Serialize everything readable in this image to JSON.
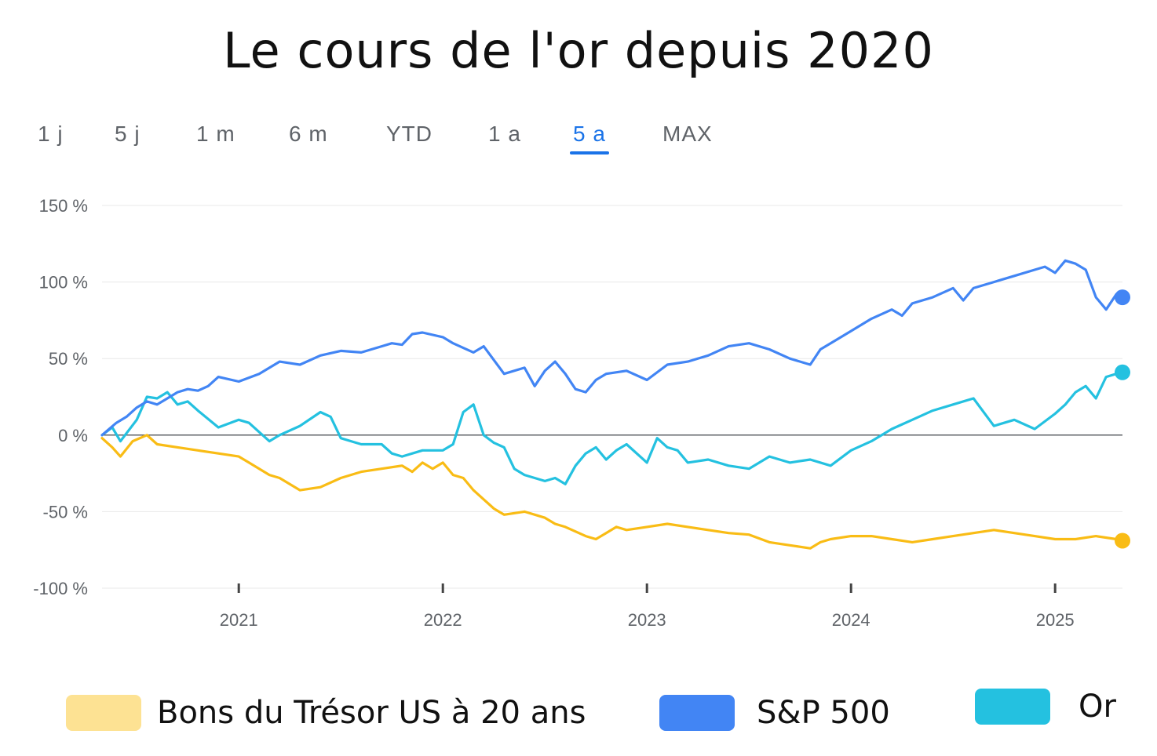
{
  "title": "Le cours de l'or depuis 2020",
  "tabs": [
    {
      "label": "1 j",
      "active": false
    },
    {
      "label": "5 j",
      "active": false
    },
    {
      "label": "1 m",
      "active": false
    },
    {
      "label": "6 m",
      "active": false
    },
    {
      "label": "YTD",
      "active": false
    },
    {
      "label": "1 a",
      "active": false
    },
    {
      "label": "5 a",
      "active": true
    },
    {
      "label": "MAX",
      "active": false
    }
  ],
  "colors": {
    "accent": "#1a73e8",
    "text": "#5f6368",
    "grid": "#e8e8e8",
    "zero_line": "#5f6368"
  },
  "legend": [
    {
      "label": "Bons du Trésor US à 20 ans",
      "color": "#fde293"
    },
    {
      "label": "S&P 500",
      "color": "#4285f4"
    },
    {
      "label": "Or",
      "color": "#24c1e0"
    }
  ],
  "chart_data": {
    "type": "line",
    "ylim": [
      -100,
      150
    ],
    "xlim": [
      2020.33,
      2025.33
    ],
    "y_ticks": [
      150,
      100,
      50,
      0,
      -50,
      -100
    ],
    "y_tick_labels": [
      "150 %",
      "100 %",
      "50 %",
      "0 %",
      "-50 %",
      "-100 %"
    ],
    "x_ticks": [
      2021,
      2022,
      2023,
      2024,
      2025
    ],
    "x_tick_labels": [
      "2021",
      "2022",
      "2023",
      "2024",
      "2025"
    ],
    "series": [
      {
        "name": "S&P 500",
        "color": "#4285f4",
        "x": [
          2020.33,
          2020.4,
          2020.45,
          2020.5,
          2020.55,
          2020.6,
          2020.65,
          2020.7,
          2020.75,
          2020.8,
          2020.85,
          2020.9,
          2021.0,
          2021.1,
          2021.2,
          2021.3,
          2021.4,
          2021.5,
          2021.6,
          2021.7,
          2021.75,
          2021.8,
          2021.85,
          2021.9,
          2022.0,
          2022.05,
          2022.15,
          2022.2,
          2022.3,
          2022.4,
          2022.45,
          2022.5,
          2022.55,
          2022.6,
          2022.65,
          2022.7,
          2022.75,
          2022.8,
          2022.9,
          2023.0,
          2023.1,
          2023.2,
          2023.3,
          2023.4,
          2023.5,
          2023.6,
          2023.7,
          2023.8,
          2023.85,
          2023.9,
          2024.0,
          2024.1,
          2024.2,
          2024.25,
          2024.3,
          2024.4,
          2024.5,
          2024.55,
          2024.6,
          2024.7,
          2024.8,
          2024.9,
          2024.95,
          2025.0,
          2025.05,
          2025.1,
          2025.15,
          2025.2,
          2025.25,
          2025.3,
          2025.33
        ],
        "y": [
          0,
          8,
          12,
          18,
          22,
          20,
          24,
          28,
          30,
          29,
          32,
          38,
          35,
          40,
          48,
          46,
          52,
          55,
          54,
          58,
          60,
          59,
          66,
          67,
          64,
          60,
          54,
          58,
          40,
          44,
          32,
          42,
          48,
          40,
          30,
          28,
          36,
          40,
          42,
          36,
          46,
          48,
          52,
          58,
          60,
          56,
          50,
          46,
          56,
          60,
          68,
          76,
          82,
          78,
          86,
          90,
          96,
          88,
          96,
          100,
          104,
          108,
          110,
          106,
          114,
          112,
          108,
          90,
          82,
          92,
          90
        ]
      },
      {
        "name": "Or",
        "color": "#24c1e0",
        "x": [
          2020.33,
          2020.38,
          2020.42,
          2020.5,
          2020.55,
          2020.6,
          2020.65,
          2020.7,
          2020.75,
          2020.8,
          2020.9,
          2021.0,
          2021.05,
          2021.1,
          2021.15,
          2021.2,
          2021.3,
          2021.4,
          2021.45,
          2021.5,
          2021.55,
          2021.6,
          2021.7,
          2021.75,
          2021.8,
          2021.9,
          2022.0,
          2022.05,
          2022.1,
          2022.15,
          2022.2,
          2022.25,
          2022.3,
          2022.35,
          2022.4,
          2022.5,
          2022.55,
          2022.6,
          2022.65,
          2022.7,
          2022.75,
          2022.8,
          2022.85,
          2022.9,
          2023.0,
          2023.05,
          2023.1,
          2023.15,
          2023.2,
          2023.3,
          2023.4,
          2023.5,
          2023.6,
          2023.7,
          2023.8,
          2023.9,
          2024.0,
          2024.1,
          2024.2,
          2024.3,
          2024.4,
          2024.5,
          2024.6,
          2024.7,
          2024.8,
          2024.9,
          2025.0,
          2025.05,
          2025.1,
          2025.15,
          2025.2,
          2025.25,
          2025.3,
          2025.33
        ],
        "y": [
          0,
          5,
          -4,
          10,
          25,
          24,
          28,
          20,
          22,
          16,
          5,
          10,
          8,
          2,
          -4,
          0,
          6,
          15,
          12,
          -2,
          -4,
          -6,
          -6,
          -12,
          -14,
          -10,
          -10,
          -6,
          15,
          20,
          0,
          -5,
          -8,
          -22,
          -26,
          -30,
          -28,
          -32,
          -20,
          -12,
          -8,
          -16,
          -10,
          -6,
          -18,
          -2,
          -8,
          -10,
          -18,
          -16,
          -20,
          -22,
          -14,
          -18,
          -16,
          -20,
          -10,
          -4,
          4,
          10,
          16,
          20,
          24,
          6,
          10,
          4,
          14,
          20,
          28,
          32,
          24,
          38,
          40,
          41
        ]
      },
      {
        "name": "Bons du Trésor US à 20 ans",
        "color": "#f9bc15",
        "x": [
          2020.33,
          2020.38,
          2020.42,
          2020.48,
          2020.55,
          2020.6,
          2020.7,
          2020.8,
          2020.9,
          2021.0,
          2021.05,
          2021.1,
          2021.15,
          2021.2,
          2021.3,
          2021.4,
          2021.5,
          2021.6,
          2021.7,
          2021.8,
          2021.85,
          2021.9,
          2021.95,
          2022.0,
          2022.05,
          2022.1,
          2022.15,
          2022.2,
          2022.25,
          2022.3,
          2022.4,
          2022.5,
          2022.55,
          2022.6,
          2022.7,
          2022.75,
          2022.8,
          2022.85,
          2022.9,
          2023.0,
          2023.1,
          2023.2,
          2023.3,
          2023.4,
          2023.5,
          2023.6,
          2023.7,
          2023.8,
          2023.85,
          2023.9,
          2024.0,
          2024.1,
          2024.2,
          2024.3,
          2024.4,
          2024.5,
          2024.6,
          2024.7,
          2024.8,
          2024.9,
          2025.0,
          2025.1,
          2025.2,
          2025.3,
          2025.33
        ],
        "y": [
          -2,
          -8,
          -14,
          -4,
          0,
          -6,
          -8,
          -10,
          -12,
          -14,
          -18,
          -22,
          -26,
          -28,
          -36,
          -34,
          -28,
          -24,
          -22,
          -20,
          -24,
          -18,
          -22,
          -18,
          -26,
          -28,
          -36,
          -42,
          -48,
          -52,
          -50,
          -54,
          -58,
          -60,
          -66,
          -68,
          -64,
          -60,
          -62,
          -60,
          -58,
          -60,
          -62,
          -64,
          -65,
          -70,
          -72,
          -74,
          -70,
          -68,
          -66,
          -66,
          -68,
          -70,
          -68,
          -66,
          -64,
          -62,
          -64,
          -66,
          -68,
          -68,
          -66,
          -68,
          -69
        ]
      }
    ]
  }
}
